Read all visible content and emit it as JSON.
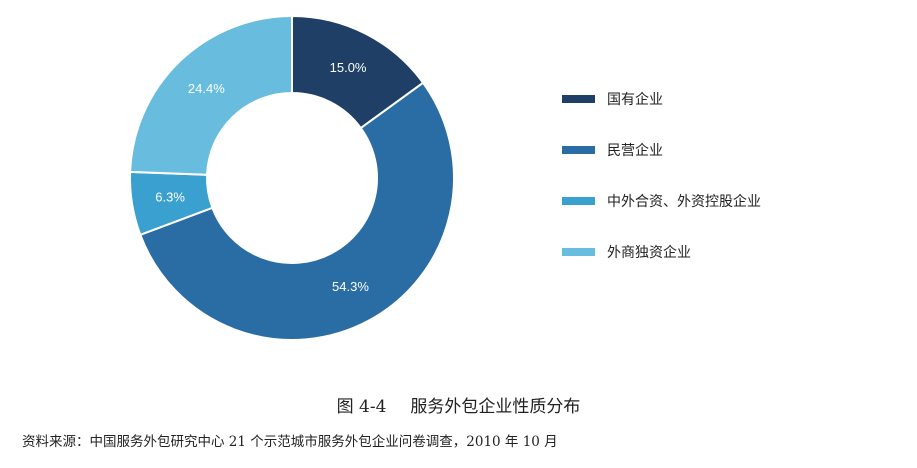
{
  "chart_data": {
    "type": "pie",
    "donut": true,
    "categories": [
      "国有企业",
      "民营企业",
      "中外合资、外资控股企业",
      "外商独资企业"
    ],
    "values": [
      15.0,
      54.3,
      6.3,
      24.4
    ],
    "labels": [
      "15.0%",
      "54.3%",
      "6.3%",
      "24.4%"
    ],
    "colors": [
      "#1f3f66",
      "#2a6ca4",
      "#3aa0cf",
      "#68bcdd"
    ],
    "legend_position": "right"
  },
  "caption": {
    "figure_number": "图 4-4",
    "title": "服务外包企业性质分布"
  },
  "source": "资料来源：中国服务外包研究中心 21 个示范城市服务外包企业问卷调查，2010 年 10 月"
}
